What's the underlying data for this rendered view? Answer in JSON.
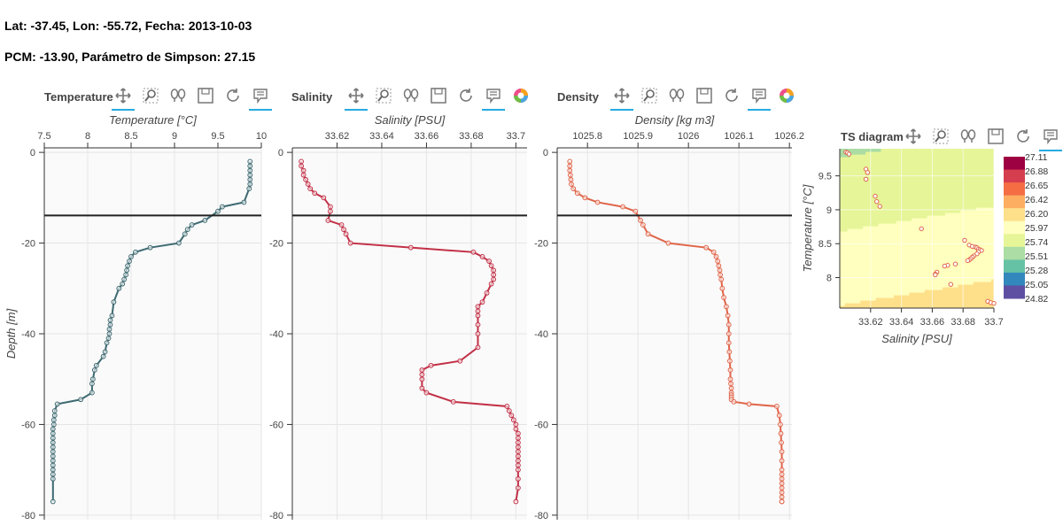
{
  "header": {
    "line1": "Lat: -37.45, Lon: -55.72, Fecha: 2013-10-03",
    "line2": "PCM: -13.90, Parámetro de Simpson: 27.15"
  },
  "toolbar": {
    "icons": [
      "pan-icon",
      "box-zoom-icon",
      "wheel-zoom-icon",
      "save-icon",
      "reset-icon",
      "hover-icon",
      "bokeh-logo-icon"
    ]
  },
  "colors": {
    "temperature": "#3e6a72",
    "salinity": "#c23147",
    "density": "#e0654a",
    "mld_line": "#222222",
    "grid": "#e5e5e5",
    "plot_bg": "#fafafa",
    "tool_active": "#26aae1"
  },
  "chart_data": [
    {
      "type": "line",
      "panel_title": "Temperature",
      "xlabel": "Temperature [°C]",
      "ylabel": "Depth [m]",
      "xlim": [
        7.5,
        10.0
      ],
      "ylim": [
        -81,
        1
      ],
      "xticks": [
        "7.5",
        "8",
        "8.5",
        "9",
        "9.5",
        "10"
      ],
      "xtick_values": [
        7.5,
        8,
        8.5,
        9,
        9.5,
        10
      ],
      "yticks": [
        "0",
        "-20",
        "-40",
        "-60",
        "-80"
      ],
      "ytick_values": [
        0,
        -20,
        -40,
        -60,
        -80
      ],
      "mld": -13.9,
      "x": [
        9.87,
        9.87,
        9.87,
        9.87,
        9.87,
        9.87,
        9.86,
        9.8,
        9.55,
        9.5,
        9.35,
        9.2,
        9.15,
        9.12,
        9.05,
        8.72,
        8.55,
        8.5,
        8.48,
        8.46,
        8.45,
        8.44,
        8.42,
        8.4,
        8.36,
        8.3,
        8.28,
        8.26,
        8.26,
        8.25,
        8.25,
        8.24,
        8.22,
        8.2,
        8.18,
        8.1,
        8.08,
        8.06,
        8.05,
        8.05,
        7.92,
        7.65,
        7.62,
        7.62,
        7.61,
        7.61,
        7.6,
        7.6,
        7.6,
        7.6,
        7.6,
        7.6,
        7.6,
        7.6,
        7.6,
        7.6,
        7.6,
        7.6,
        7.6
      ],
      "y": [
        -2,
        -3,
        -4,
        -5,
        -6,
        -7,
        -8,
        -11,
        -12,
        -13,
        -15,
        -16,
        -17,
        -18,
        -20,
        -21,
        -22,
        -23,
        -24,
        -25,
        -26,
        -27,
        -28,
        -29,
        -30,
        -33,
        -36,
        -37,
        -38,
        -39,
        -40,
        -41,
        -42,
        -44,
        -45,
        -47,
        -48,
        -50,
        -51,
        -53,
        -54.5,
        -55.5,
        -57,
        -58,
        -59,
        -60,
        -61,
        -62,
        -63,
        -64,
        -65,
        -66,
        -67,
        -68,
        -69,
        -70,
        -71,
        -72,
        -77
      ]
    },
    {
      "type": "line",
      "panel_title": "Salinity",
      "xlabel": "Salinity [PSU]",
      "ylabel": "",
      "xlim": [
        33.6,
        33.705
      ],
      "ylim": [
        -81,
        1
      ],
      "xticks": [
        "33.62",
        "33.64",
        "33.66",
        "33.68",
        "33.7"
      ],
      "xtick_values": [
        33.62,
        33.64,
        33.66,
        33.68,
        33.7
      ],
      "yticks": [
        "0",
        "-20",
        "-40",
        "-60",
        "-80"
      ],
      "ytick_values": [
        0,
        -20,
        -40,
        -60,
        -80
      ],
      "mld": -13.9,
      "x": [
        33.604,
        33.604,
        33.605,
        33.605,
        33.606,
        33.607,
        33.608,
        33.61,
        33.614,
        33.617,
        33.617,
        33.616,
        33.622,
        33.623,
        33.624,
        33.626,
        33.653,
        33.681,
        33.685,
        33.688,
        33.689,
        33.69,
        33.69,
        33.69,
        33.689,
        33.687,
        33.685,
        33.683,
        33.683,
        33.683,
        33.683,
        33.683,
        33.683,
        33.675,
        33.662,
        33.658,
        33.658,
        33.658,
        33.658,
        33.66,
        33.672,
        33.696,
        33.697,
        33.698,
        33.699,
        33.7,
        33.7,
        33.701,
        33.701,
        33.701,
        33.701,
        33.701,
        33.701,
        33.701,
        33.701,
        33.701,
        33.701,
        33.701,
        33.7
      ],
      "y": [
        -2,
        -3,
        -4,
        -5,
        -6,
        -7,
        -8,
        -9,
        -10,
        -12,
        -13,
        -15,
        -16,
        -17,
        -18,
        -20,
        -21,
        -22,
        -23,
        -24,
        -25,
        -26,
        -27,
        -28,
        -29,
        -31,
        -33,
        -34,
        -35,
        -36,
        -38,
        -40,
        -43,
        -46,
        -47,
        -48,
        -49,
        -50,
        -52,
        -53,
        -55,
        -56,
        -57,
        -58,
        -59,
        -60,
        -61,
        -62,
        -63,
        -64,
        -65,
        -66,
        -67,
        -68,
        -69,
        -70,
        -72,
        -74,
        -77
      ]
    },
    {
      "type": "line",
      "panel_title": "Density",
      "xlabel": "Density [kg m3]",
      "ylabel": "",
      "xlim": [
        1025.74,
        1026.205
      ],
      "ylim": [
        -81,
        1
      ],
      "xticks": [
        "1025.8",
        "1025.9",
        "1026",
        "1026.1",
        "1026.2"
      ],
      "xtick_values": [
        1025.8,
        1025.9,
        1026,
        1026.1,
        1026.2
      ],
      "yticks": [
        "0",
        "-20",
        "-40",
        "-60",
        "-80"
      ],
      "ytick_values": [
        0,
        -20,
        -40,
        -60,
        -80
      ],
      "mld": -13.9,
      "x": [
        1025.765,
        1025.765,
        1025.765,
        1025.766,
        1025.767,
        1025.768,
        1025.772,
        1025.78,
        1025.795,
        1025.82,
        1025.87,
        1025.895,
        1025.905,
        1025.91,
        1025.92,
        1025.96,
        1026.035,
        1026.05,
        1026.055,
        1026.058,
        1026.06,
        1026.062,
        1026.063,
        1026.065,
        1026.067,
        1026.07,
        1026.075,
        1026.078,
        1026.08,
        1026.08,
        1026.08,
        1026.081,
        1026.082,
        1026.083,
        1026.083,
        1026.084,
        1026.085,
        1026.085,
        1026.085,
        1026.085,
        1026.085,
        1026.09,
        1026.12,
        1026.175,
        1026.18,
        1026.182,
        1026.183,
        1026.184,
        1026.185,
        1026.185,
        1026.185,
        1026.185,
        1026.185,
        1026.185,
        1026.185,
        1026.185,
        1026.185,
        1026.185,
        1026.185
      ],
      "y": [
        -2,
        -3,
        -4,
        -5,
        -6,
        -7,
        -8,
        -9,
        -10,
        -11,
        -12,
        -13,
        -15,
        -16,
        -18,
        -20,
        -21,
        -22,
        -23,
        -24,
        -25,
        -26,
        -27,
        -28,
        -30,
        -32,
        -34,
        -36,
        -38,
        -40,
        -42,
        -44,
        -46,
        -48,
        -50,
        -51,
        -52,
        -53,
        -53.5,
        -54,
        -54.5,
        -55,
        -55.5,
        -56,
        -58,
        -60,
        -62,
        -64,
        -66,
        -68,
        -70,
        -71,
        -72,
        -73,
        -74,
        -75,
        -76,
        -77,
        -77
      ]
    },
    {
      "type": "scatter",
      "panel_title": "TS diagram",
      "xlabel": "Salinity [PSU]",
      "ylabel": "Temperature [°C]",
      "xlim": [
        33.6,
        33.7
      ],
      "ylim": [
        7.55,
        9.9
      ],
      "xticks": [
        "33.62",
        "33.64",
        "33.66",
        "33.68",
        "33.7"
      ],
      "xtick_values": [
        33.62,
        33.64,
        33.66,
        33.68,
        33.7
      ],
      "yticks": [
        "8",
        "8.5",
        "9",
        "9.5"
      ],
      "ytick_values": [
        8,
        8.5,
        9,
        9.5
      ],
      "contour_levels": [
        "27.11",
        "26.88",
        "26.65",
        "26.42",
        "26.20",
        "25.97",
        "25.74",
        "25.51",
        "25.28",
        "25.05",
        "24.82"
      ],
      "contour_colors": [
        "#9e0142",
        "#d53e4f",
        "#f46d43",
        "#fdae61",
        "#fee08b",
        "#ffffbf",
        "#e6f598",
        "#abdda4",
        "#66c2a5",
        "#3288bd",
        "#5e4fa2"
      ],
      "points_x": [
        33.604,
        33.605,
        33.606,
        33.617,
        33.618,
        33.617,
        33.623,
        33.624,
        33.626,
        33.653,
        33.681,
        33.684,
        33.686,
        33.688,
        33.689,
        33.69,
        33.691,
        33.692,
        33.69,
        33.689,
        33.687,
        33.686,
        33.685,
        33.684,
        33.683,
        33.675,
        33.67,
        33.668,
        33.663,
        33.662,
        33.662,
        33.672,
        33.696,
        33.698,
        33.7
      ],
      "points_y": [
        9.85,
        9.84,
        9.82,
        9.6,
        9.55,
        9.45,
        9.2,
        9.12,
        9.05,
        8.72,
        8.55,
        8.48,
        8.46,
        8.45,
        8.44,
        8.42,
        8.41,
        8.4,
        8.38,
        8.35,
        8.32,
        8.3,
        8.28,
        8.26,
        8.25,
        8.2,
        8.18,
        8.17,
        8.08,
        8.05,
        8.04,
        7.9,
        7.65,
        7.63,
        7.62
      ]
    }
  ]
}
